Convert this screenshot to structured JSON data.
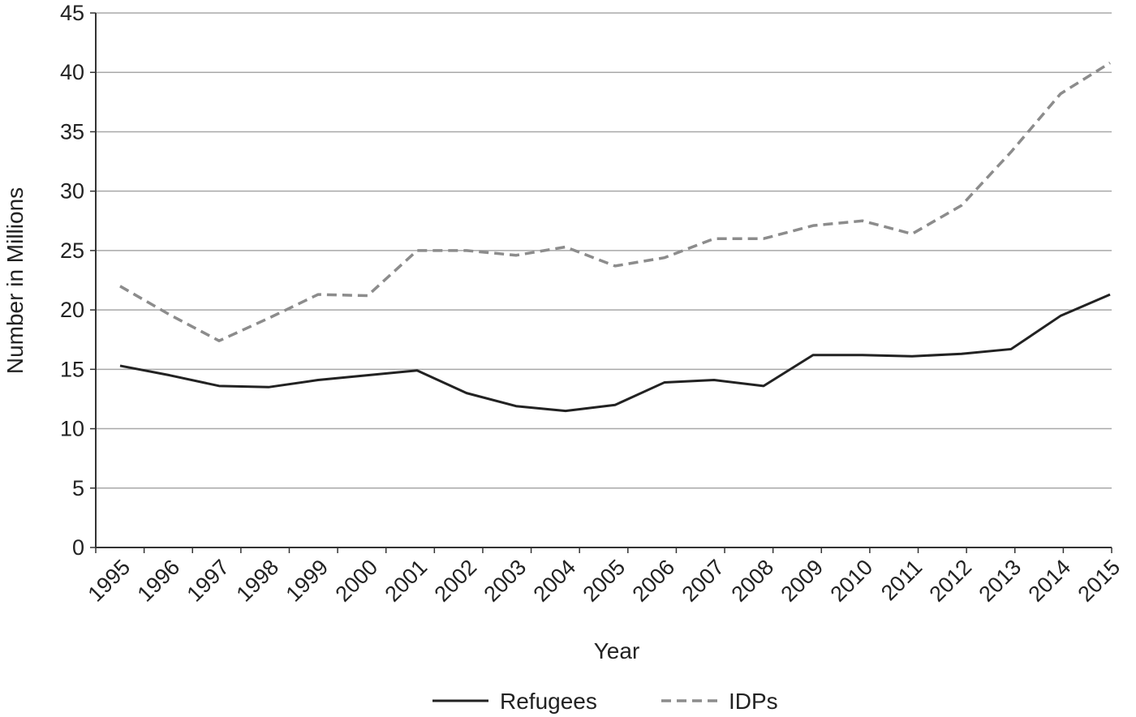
{
  "chart_data": {
    "type": "line",
    "title": "",
    "xlabel": "Year",
    "ylabel": "Number in Millions",
    "ylim": [
      0,
      45
    ],
    "yticks": [
      0,
      5,
      10,
      15,
      20,
      25,
      30,
      35,
      40,
      45
    ],
    "grid": "horizontal",
    "legend_position": "bottom-center",
    "categories": [
      "1995",
      "1996",
      "1997",
      "1998",
      "1999",
      "2000",
      "2001",
      "2002",
      "2003",
      "2004",
      "2005",
      "2006",
      "2007",
      "2008",
      "2009",
      "2010",
      "2011",
      "2012",
      "2013",
      "2014",
      "2015"
    ],
    "series": [
      {
        "name": "Refugees",
        "style": "solid",
        "color": "#222222",
        "values": [
          15.3,
          14.5,
          13.6,
          13.5,
          14.1,
          14.5,
          14.9,
          13.0,
          11.9,
          11.5,
          12.0,
          13.9,
          14.1,
          13.6,
          16.2,
          16.2,
          16.1,
          16.3,
          16.7,
          19.5,
          21.3
        ]
      },
      {
        "name": "IDPs",
        "style": "dashed",
        "color": "#8c8c8c",
        "values": [
          22.0,
          19.6,
          17.4,
          19.3,
          21.3,
          21.2,
          25.0,
          25.0,
          24.6,
          25.3,
          23.7,
          24.4,
          26.0,
          26.0,
          27.1,
          27.5,
          26.4,
          28.8,
          33.3,
          38.2,
          40.8
        ]
      }
    ]
  }
}
